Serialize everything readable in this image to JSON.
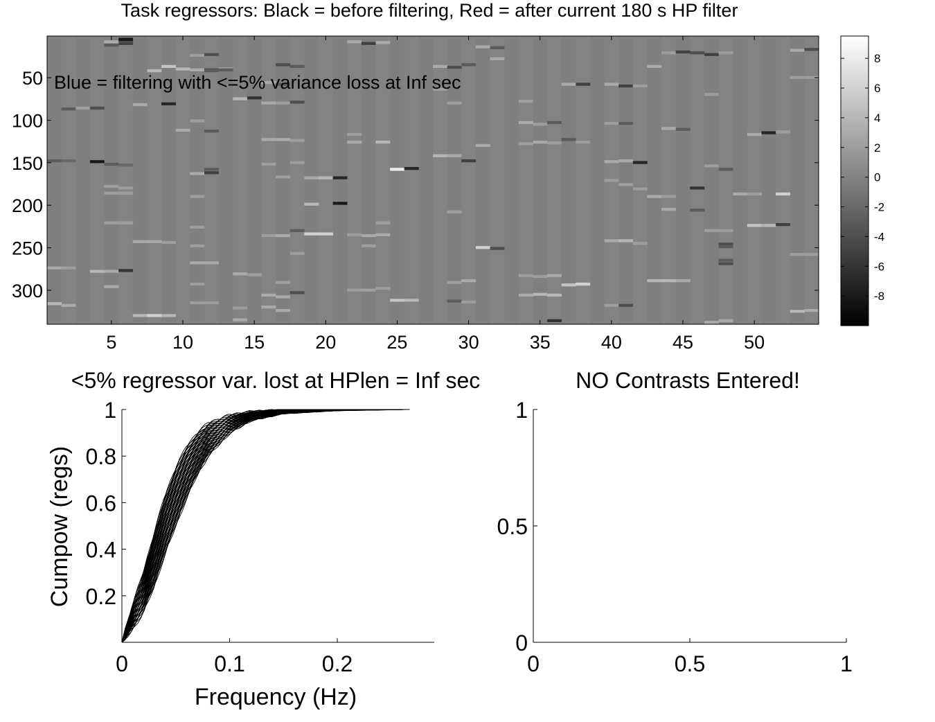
{
  "figure": {
    "top_title": "Task regressors: Black = before filtering, Red = after current 180 s HP filter",
    "overlay_text": "Blue = filtering with <=5% variance loss at Inf sec"
  },
  "chart_data": [
    {
      "type": "heatmap",
      "name": "task-regressor-image",
      "title": "Task regressors: Black = before filtering, Red = after current 180 s HP filter",
      "annotation": "Blue = filtering with <=5% variance loss at Inf sec",
      "colormap": "gray",
      "x_ticks": [
        5,
        10,
        15,
        20,
        25,
        30,
        35,
        40,
        45,
        50
      ],
      "xlim": [
        0.5,
        54.5
      ],
      "y_ticks": [
        50,
        100,
        150,
        200,
        250,
        300
      ],
      "ylim": [
        1,
        340
      ],
      "n_columns": 54,
      "n_rows": 340,
      "colorbar": {
        "ticks": [
          8,
          6,
          4,
          2,
          0,
          -2,
          -4,
          -6,
          -8
        ],
        "range": [
          -10,
          9.5
        ]
      },
      "events": [
        [
          2,
          87,
          -3
        ],
        [
          3,
          86,
          2
        ],
        [
          4,
          86,
          -4
        ],
        [
          1,
          148,
          -3
        ],
        [
          2,
          148,
          -2
        ],
        [
          4,
          149,
          -8
        ],
        [
          5,
          8,
          3
        ],
        [
          5,
          12,
          -3
        ],
        [
          6,
          6,
          -6
        ],
        [
          6,
          5,
          -8
        ],
        [
          6,
          10,
          -5
        ],
        [
          5,
          152,
          -3
        ],
        [
          6,
          153,
          -2
        ],
        [
          1,
          274,
          3
        ],
        [
          2,
          274,
          2
        ],
        [
          4,
          278,
          4
        ],
        [
          5,
          278,
          3
        ],
        [
          6,
          277,
          -6
        ],
        [
          1,
          316,
          4
        ],
        [
          2,
          318,
          3
        ],
        [
          5,
          296,
          3
        ],
        [
          5,
          221,
          2
        ],
        [
          6,
          221,
          2
        ],
        [
          5,
          178,
          2
        ],
        [
          6,
          180,
          2
        ],
        [
          5,
          186,
          2
        ],
        [
          6,
          186,
          2
        ],
        [
          7,
          330,
          4
        ],
        [
          8,
          330,
          6
        ],
        [
          9,
          330,
          4
        ],
        [
          7,
          243,
          3
        ],
        [
          8,
          243,
          3
        ],
        [
          9,
          244,
          2
        ],
        [
          8,
          42,
          4
        ],
        [
          9,
          37,
          5
        ],
        [
          9,
          81,
          -7
        ],
        [
          10,
          40,
          4
        ],
        [
          7,
          82,
          3
        ],
        [
          10,
          112,
          3
        ],
        [
          11,
          101,
          2
        ],
        [
          11,
          163,
          3
        ],
        [
          12,
          158,
          -3
        ],
        [
          12,
          162,
          -5
        ],
        [
          11,
          190,
          2
        ],
        [
          11,
          226,
          2
        ],
        [
          11,
          248,
          2
        ],
        [
          11,
          268,
          3
        ],
        [
          12,
          268,
          3
        ],
        [
          11,
          293,
          2
        ],
        [
          11,
          315,
          2
        ],
        [
          12,
          315,
          2
        ],
        [
          11,
          41,
          3
        ],
        [
          11,
          24,
          2
        ],
        [
          12,
          23,
          -4
        ],
        [
          12,
          41,
          -4
        ],
        [
          12,
          42,
          -3
        ],
        [
          13,
          40,
          3
        ],
        [
          13,
          41,
          -3
        ],
        [
          12,
          113,
          -3
        ],
        [
          14,
          75,
          4
        ],
        [
          15,
          74,
          -6
        ],
        [
          14,
          281,
          3
        ],
        [
          15,
          282,
          2
        ],
        [
          14,
          321,
          2
        ],
        [
          14,
          335,
          3
        ],
        [
          16,
          56,
          3
        ],
        [
          17,
          35,
          -4
        ],
        [
          17,
          58,
          -3
        ],
        [
          18,
          37,
          -3
        ],
        [
          16,
          152,
          2
        ],
        [
          17,
          167,
          2
        ],
        [
          16,
          80,
          3
        ],
        [
          17,
          80,
          2
        ],
        [
          18,
          79,
          -4
        ],
        [
          16,
          123,
          3
        ],
        [
          17,
          123,
          3
        ],
        [
          18,
          124,
          2
        ],
        [
          18,
          150,
          2
        ],
        [
          18,
          303,
          -4
        ],
        [
          16,
          306,
          3
        ],
        [
          17,
          308,
          3
        ],
        [
          16,
          320,
          3
        ],
        [
          17,
          324,
          3
        ],
        [
          18,
          230,
          -3
        ],
        [
          16,
          236,
          2
        ],
        [
          17,
          236,
          3
        ],
        [
          18,
          257,
          2
        ],
        [
          17,
          291,
          2
        ],
        [
          19,
          168,
          3
        ],
        [
          20,
          168,
          4
        ],
        [
          21,
          168,
          -7
        ],
        [
          19,
          199,
          4
        ],
        [
          21,
          198,
          -8
        ],
        [
          19,
          234,
          6
        ],
        [
          20,
          234,
          6
        ],
        [
          22,
          8,
          3
        ],
        [
          23,
          10,
          -5
        ],
        [
          24,
          9,
          3
        ],
        [
          22,
          235,
          2
        ],
        [
          23,
          236,
          3
        ],
        [
          24,
          235,
          3
        ],
        [
          22,
          117,
          2
        ],
        [
          22,
          126,
          3
        ],
        [
          24,
          126,
          4
        ],
        [
          22,
          300,
          2
        ],
        [
          23,
          300,
          2
        ],
        [
          24,
          298,
          2
        ],
        [
          24,
          221,
          2
        ],
        [
          23,
          248,
          2
        ],
        [
          25,
          158,
          8
        ],
        [
          26,
          157,
          -7
        ],
        [
          25,
          312,
          5
        ],
        [
          26,
          312,
          4
        ],
        [
          28,
          37,
          3
        ],
        [
          29,
          38,
          -4
        ],
        [
          30,
          35,
          -3
        ],
        [
          28,
          64,
          2
        ],
        [
          29,
          80,
          2
        ],
        [
          28,
          142,
          4
        ],
        [
          29,
          142,
          3
        ],
        [
          29,
          208,
          2
        ],
        [
          29,
          291,
          2
        ],
        [
          30,
          289,
          3
        ],
        [
          29,
          313,
          -3
        ],
        [
          30,
          314,
          2
        ],
        [
          30,
          148,
          -5
        ],
        [
          31,
          130,
          3
        ],
        [
          31,
          250,
          6
        ],
        [
          32,
          251,
          -4
        ],
        [
          31,
          14,
          3
        ],
        [
          32,
          15,
          -3
        ],
        [
          32,
          28,
          3
        ],
        [
          34,
          78,
          2
        ],
        [
          34,
          103,
          3
        ],
        [
          35,
          105,
          2
        ],
        [
          36,
          103,
          -3
        ],
        [
          34,
          128,
          2
        ],
        [
          35,
          126,
          3
        ],
        [
          36,
          127,
          2
        ],
        [
          34,
          283,
          2
        ],
        [
          35,
          284,
          2
        ],
        [
          36,
          283,
          3
        ],
        [
          34,
          306,
          3
        ],
        [
          35,
          305,
          4
        ],
        [
          36,
          306,
          4
        ],
        [
          36,
          336,
          -6
        ],
        [
          37,
          123,
          -3
        ],
        [
          38,
          126,
          2
        ],
        [
          37,
          294,
          5
        ],
        [
          38,
          293,
          6
        ],
        [
          37,
          58,
          3
        ],
        [
          38,
          58,
          -5
        ],
        [
          40,
          58,
          3
        ],
        [
          41,
          60,
          -5
        ],
        [
          42,
          60,
          2
        ],
        [
          40,
          104,
          2
        ],
        [
          41,
          104,
          -3
        ],
        [
          40,
          149,
          3
        ],
        [
          41,
          148,
          3
        ],
        [
          42,
          150,
          -7
        ],
        [
          40,
          171,
          2
        ],
        [
          41,
          176,
          2
        ],
        [
          42,
          181,
          2
        ],
        [
          40,
          242,
          3
        ],
        [
          41,
          242,
          4
        ],
        [
          42,
          245,
          2
        ],
        [
          40,
          318,
          2
        ],
        [
          41,
          318,
          -4
        ],
        [
          43,
          37,
          3
        ],
        [
          44,
          21,
          2
        ],
        [
          45,
          20,
          -5
        ],
        [
          44,
          110,
          3
        ],
        [
          45,
          111,
          -3
        ],
        [
          43,
          190,
          3
        ],
        [
          44,
          190,
          2
        ],
        [
          44,
          205,
          3
        ],
        [
          46,
          206,
          -3
        ],
        [
          43,
          289,
          4
        ],
        [
          44,
          289,
          4
        ],
        [
          45,
          289,
          3
        ],
        [
          46,
          180,
          -6
        ],
        [
          46,
          21,
          -4
        ],
        [
          47,
          23,
          -5
        ],
        [
          48,
          21,
          2
        ],
        [
          47,
          70,
          2
        ],
        [
          47,
          154,
          2
        ],
        [
          48,
          158,
          -3
        ],
        [
          47,
          230,
          2
        ],
        [
          48,
          230,
          2
        ],
        [
          47,
          338,
          3
        ],
        [
          48,
          336,
          3
        ],
        [
          46,
          350,
          0
        ],
        [
          48,
          269,
          -4
        ],
        [
          48,
          265,
          -3
        ],
        [
          48,
          246,
          -4
        ],
        [
          48,
          249,
          -3
        ],
        [
          50,
          117,
          3
        ],
        [
          51,
          115,
          -7
        ],
        [
          52,
          114,
          2
        ],
        [
          49,
          187,
          3
        ],
        [
          50,
          187,
          2
        ],
        [
          52,
          187,
          6
        ],
        [
          50,
          224,
          5
        ],
        [
          51,
          224,
          4
        ],
        [
          52,
          223,
          -5
        ],
        [
          53,
          18,
          3
        ],
        [
          54,
          17,
          -4
        ],
        [
          55,
          18,
          -3
        ],
        [
          53,
          50,
          2
        ],
        [
          54,
          50,
          2
        ],
        [
          55,
          50,
          -3
        ],
        [
          53,
          258,
          2
        ],
        [
          54,
          258,
          2
        ],
        [
          55,
          256,
          -4
        ],
        [
          53,
          325,
          4
        ],
        [
          54,
          324,
          3
        ],
        [
          55,
          323,
          2
        ]
      ]
    },
    {
      "type": "line",
      "name": "cumulative-power-plot",
      "title": "<5% regressor var. lost at HPlen = Inf sec",
      "xlabel": "Frequency (Hz)",
      "ylabel": "Cumpow (regs)",
      "xlim": [
        0,
        0.29
      ],
      "ylim": [
        0,
        1
      ],
      "x_ticks": [
        0,
        0.1,
        0.2
      ],
      "y_ticks": [
        0.2,
        0.4,
        0.6,
        0.8,
        1
      ],
      "n_series": 54,
      "frequency_max": 0.267,
      "median_curve": {
        "x": [
          0,
          0.01,
          0.02,
          0.03,
          0.04,
          0.05,
          0.06,
          0.07,
          0.08,
          0.1,
          0.12,
          0.15,
          0.2,
          0.267
        ],
        "y": [
          0,
          0.1,
          0.2,
          0.34,
          0.52,
          0.66,
          0.77,
          0.85,
          0.9,
          0.955,
          0.98,
          0.995,
          0.999,
          1
        ]
      },
      "spread": {
        "x": [
          0,
          0.01,
          0.02,
          0.03,
          0.04,
          0.05,
          0.06,
          0.07,
          0.08,
          0.1,
          0.12,
          0.15,
          0.2,
          0.267
        ],
        "low": [
          0,
          0.06,
          0.13,
          0.24,
          0.38,
          0.5,
          0.62,
          0.72,
          0.8,
          0.9,
          0.955,
          0.985,
          0.997,
          1
        ],
        "high": [
          0,
          0.16,
          0.3,
          0.47,
          0.63,
          0.75,
          0.84,
          0.9,
          0.94,
          0.975,
          0.99,
          0.998,
          1,
          1
        ]
      }
    },
    {
      "type": "line",
      "name": "contrast-plot",
      "title": "NO Contrasts Entered!",
      "xlim": [
        0,
        1
      ],
      "ylim": [
        0,
        1
      ],
      "x_ticks": [
        0,
        0.5,
        1
      ],
      "y_ticks": [
        0,
        0.5,
        1
      ],
      "series": []
    }
  ]
}
